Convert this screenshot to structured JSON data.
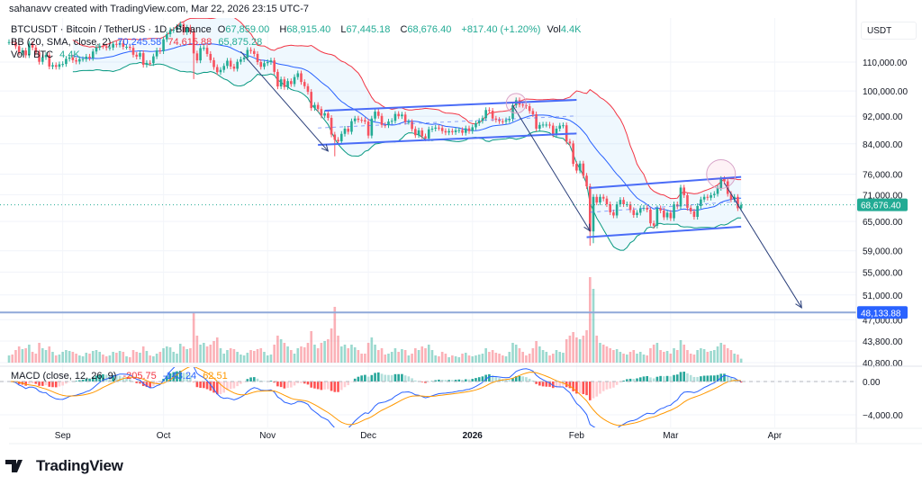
{
  "header": {
    "attribution": "sahanavv created with TradingView.com, Mar 22, 2026 23:15 UTC-7",
    "symbol": "BTCUSDT · Bitcoin / TetherUS · 1D · Binance",
    "o_label": "O",
    "o_value": "67,859.00",
    "h_label": "H",
    "h_value": "68,915.40",
    "l_label": "L",
    "l_value": "67,445.18",
    "c_label": "C",
    "c_value": "68,676.40",
    "change": "+817.40 (+1.20%)",
    "vol_label": "Vol",
    "vol_value": "4.4K"
  },
  "indicators": {
    "bb": {
      "label": "BB (20, SMA, close, 2)",
      "basis": "70,245.58",
      "upper": "74,615.88",
      "lower": "65,875.28"
    },
    "vol": {
      "label": "Vol · BTC",
      "value": "4.4K"
    },
    "macd": {
      "label": "MACD (close, 12, 26, 9)",
      "histogram": "-205.75",
      "macd": "-143.24",
      "signal": "62.51"
    }
  },
  "price_axis": {
    "unit": "USDT",
    "current_price": "68,676.40",
    "line_price": "48,133.88"
  },
  "logo": {
    "text": "TradingView"
  },
  "colors": {
    "up": "#22ab94",
    "down": "#f7525f",
    "bb_upper": "#f23645",
    "bb_lower": "#089981",
    "bb_basis": "#2962ff",
    "macd": "#2962ff",
    "signal": "#ff9800",
    "drawing": "#4a6cf7",
    "arrow": "#2a3f7a",
    "current_price_badge": "#22ab94",
    "line_badge": "#2962ff"
  },
  "chart_data": {
    "type": "candlestick",
    "symbol": "BTCUSDT",
    "interval": "1D",
    "y_scale": "log",
    "grid": true,
    "price_ticks": [
      110000,
      100000,
      92000,
      84000,
      76000,
      71000,
      65000,
      59000,
      55000,
      51000,
      47000,
      43800,
      40800
    ],
    "macd_ticks": [
      0,
      -4000
    ],
    "time_ticks": [
      {
        "label": "Sep",
        "date": "2025-09-01"
      },
      {
        "label": "Oct",
        "date": "2025-10-01"
      },
      {
        "label": "Nov",
        "date": "2025-11-01"
      },
      {
        "label": "Dec",
        "date": "2025-12-01"
      },
      {
        "label": "2026",
        "date": "2026-01-01",
        "bold": true
      },
      {
        "label": "Feb",
        "date": "2026-02-01"
      },
      {
        "label": "Mar",
        "date": "2026-03-01"
      },
      {
        "label": "Apr",
        "date": "2026-04-01"
      }
    ],
    "candles": [
      {
        "from": "2025-08-16",
        "closes": [
          117500,
          117400,
          115900,
          113500,
          114300,
          112500,
          116900,
          115400,
          113500,
          110100,
          111800,
          112600,
          108400,
          108900,
          108300,
          109200
        ],
        "volume_k": [
          8,
          9,
          14,
          18,
          15,
          16,
          20,
          12,
          10,
          22,
          16,
          14,
          18,
          12,
          8,
          9
        ]
      },
      {
        "from": "2025-09-01",
        "closes": [
          109300,
          111200,
          111700,
          110700,
          110200,
          111100,
          111100,
          112000,
          111500,
          113900,
          115400,
          116000,
          115900,
          115300,
          115400,
          116800,
          116500,
          117100,
          115700,
          115700,
          115300,
          112700,
          112000,
          113300,
          109000,
          109700,
          109600,
          112100,
          114300,
          114000
        ],
        "volume_k": [
          12,
          14,
          13,
          12,
          10,
          8,
          7,
          11,
          10,
          13,
          14,
          12,
          9,
          7,
          8,
          12,
          11,
          13,
          12,
          7,
          6,
          14,
          12,
          11,
          18,
          13,
          8,
          7,
          10,
          12
        ]
      },
      {
        "from": "2025-10-01",
        "closes": [
          118600,
          120600,
          122200,
          122400,
          123500,
          124700,
          121400,
          123300,
          121700,
          113200,
          110600,
          115200,
          115300,
          113000,
          110700,
          108200,
          106400,
          107200,
          108600,
          110500,
          108400,
          107600,
          110100,
          111000,
          111600,
          114500,
          114100,
          113000,
          110000,
          108300,
          109600
        ],
        "volume_k": [
          16,
          18,
          17,
          12,
          10,
          21,
          18,
          15,
          16,
          55,
          30,
          20,
          22,
          18,
          20,
          24,
          28,
          16,
          10,
          14,
          16,
          15,
          12,
          9,
          8,
          11,
          14,
          13,
          15,
          16,
          12
        ]
      },
      {
        "from": "2025-11-01",
        "closes": [
          110000,
          110600,
          106500,
          101500,
          103900,
          101300,
          103300,
          102300,
          104700,
          106000,
          103000,
          101600,
          99700,
          94500,
          95500,
          94200,
          92200,
          92900,
          91500,
          86600,
          85100,
          84700,
          86800,
          88300,
          87400,
          90500,
          91300,
          90900,
          90800,
          90400
        ],
        "volume_k": [
          8,
          9,
          20,
          30,
          26,
          22,
          18,
          14,
          10,
          16,
          18,
          17,
          22,
          35,
          20,
          16,
          22,
          24,
          26,
          38,
          62,
          30,
          18,
          20,
          16,
          20,
          17,
          14,
          10,
          10
        ]
      },
      {
        "from": "2025-12-01",
        "closes": [
          86300,
          91300,
          93400,
          92100,
          89400,
          89300,
          90400,
          90600,
          92700,
          92000,
          92500,
          90300,
          90300,
          88200,
          86400,
          87800,
          86100,
          85500,
          88100,
          88300,
          88600,
          88500,
          87600,
          87200,
          87600,
          87300,
          87800,
          87900,
          87100,
          88400,
          87600
        ],
        "volume_k": [
          22,
          28,
          20,
          14,
          16,
          9,
          10,
          12,
          16,
          12,
          15,
          14,
          8,
          10,
          16,
          14,
          18,
          16,
          20,
          14,
          8,
          7,
          12,
          10,
          6,
          8,
          7,
          6,
          10,
          11,
          8
        ]
      },
      {
        "from": "2026-01-01",
        "closes": [
          88700,
          89900,
          90600,
          91400,
          93900,
          93700,
          91300,
          90900,
          90500,
          90400,
          90800,
          91200,
          95400,
          97000,
          95600,
          95500,
          95100,
          93600,
          92600,
          88300,
          89400,
          89500,
          89500,
          89200,
          86600,
          88300,
          89200,
          89300,
          84600,
          84100,
          78600
        ],
        "volume_k": [
          7,
          8,
          9,
          10,
          16,
          12,
          14,
          11,
          10,
          8,
          7,
          12,
          22,
          20,
          16,
          12,
          8,
          10,
          16,
          24,
          18,
          14,
          12,
          8,
          10,
          14,
          12,
          11,
          26,
          30,
          34
        ]
      },
      {
        "from": "2026-02-01",
        "closes": [
          76900,
          78700,
          75600,
          73000,
          62900,
          70500,
          69200,
          70500,
          70100,
          68800,
          67000,
          66300,
          68800,
          69800,
          68800,
          68800,
          67500,
          66400,
          66900,
          67900,
          68000,
          67600,
          64600,
          64100,
          67900,
          67400,
          65900,
          66900
        ],
        "volume_k": [
          28,
          26,
          30,
          36,
          95,
          82,
          30,
          22,
          20,
          18,
          16,
          14,
          15,
          12,
          10,
          9,
          12,
          14,
          10,
          12,
          9,
          8,
          16,
          20,
          22,
          14,
          12,
          13
        ]
      },
      {
        "from": "2026-03-01",
        "closes": [
          65700,
          68800,
          68300,
          72700,
          70900,
          68000,
          67200,
          66000,
          68400,
          69900,
          70500,
          70300,
          70900,
          71200,
          72600,
          74800,
          74200,
          71200,
          69900,
          70500,
          67900,
          68676.4
        ],
        "volume_k": [
          10,
          16,
          14,
          25,
          20,
          14,
          10,
          9,
          14,
          16,
          15,
          12,
          13,
          14,
          18,
          22,
          20,
          16,
          14,
          10,
          9,
          4.4
        ]
      }
    ],
    "wicks": [
      {
        "date": "2025-10-10",
        "low": 104000
      },
      {
        "date": "2025-11-21",
        "low": 80600
      },
      {
        "date": "2026-02-05",
        "low": 60000
      },
      {
        "date": "2026-02-06",
        "low": 60500
      }
    ],
    "bollinger": {
      "length": 20,
      "mult": 2
    },
    "macd_params": {
      "fast": 12,
      "slow": 26,
      "signal": 9
    },
    "drawings": {
      "channels": [
        {
          "upper": [
            [
              "2025-11-18",
              93700
            ],
            [
              "2026-02-01",
              97100
            ]
          ],
          "lower": [
            [
              "2025-11-16",
              83700
            ],
            [
              "2026-02-01",
              86900
            ]
          ],
          "mid": [
            [
              "2025-11-16",
              88500
            ],
            [
              "2026-02-01",
              92100
            ]
          ]
        },
        {
          "upper": [
            [
              "2026-02-05",
              72600
            ],
            [
              "2026-03-22",
              75300
            ]
          ],
          "lower": [
            [
              "2026-02-04",
              61700
            ],
            [
              "2026-03-22",
              63900
            ]
          ],
          "mid": [
            [
              "2026-02-05",
              67000
            ],
            [
              "2026-03-22",
              69500
            ]
          ]
        }
      ],
      "arrows": [
        {
          "from": [
            "2025-10-24",
            113900
          ],
          "to": [
            "2025-11-19",
            82000
          ]
        },
        {
          "from": [
            "2026-01-13",
            95300
          ],
          "to": [
            "2026-02-05",
            63000
          ]
        },
        {
          "from": [
            "2026-03-17",
            73800
          ],
          "to": [
            "2026-04-09",
            48900
          ]
        }
      ],
      "circles": [
        {
          "center": [
            "2026-01-14",
            96000
          ]
        },
        {
          "center": [
            "2026-03-16",
            76000
          ]
        }
      ],
      "horizontal_line": 48133.88
    }
  }
}
